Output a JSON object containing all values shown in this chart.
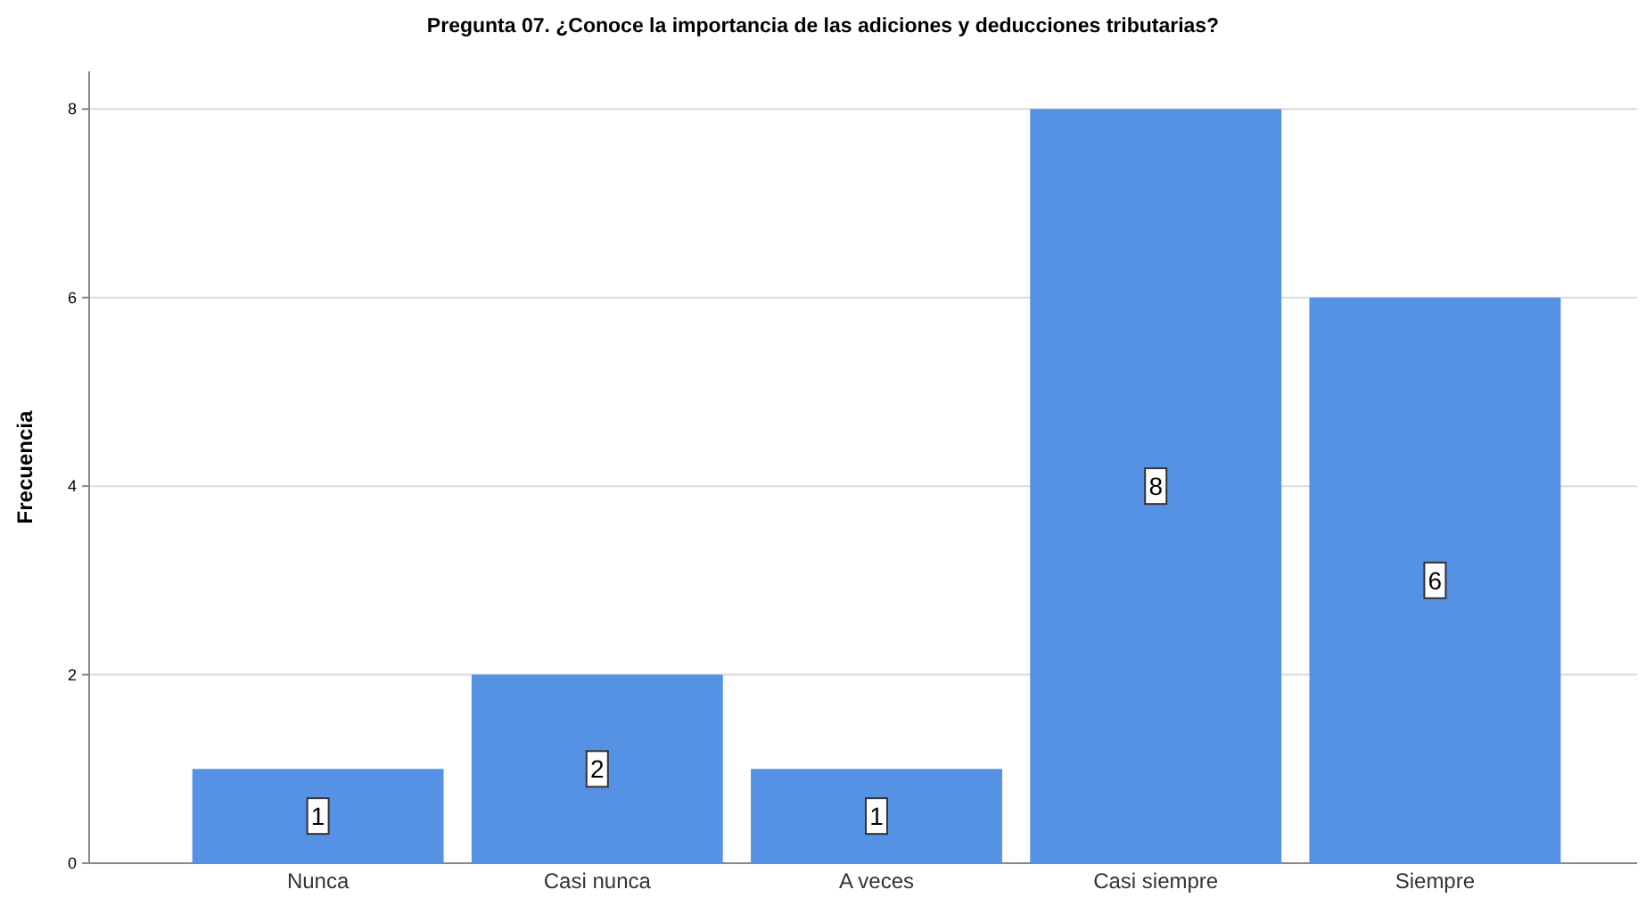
{
  "chart_data": {
    "type": "bar",
    "title": "Pregunta 07. ¿Conoce la importancia de las adiciones y deducciones tributarias?",
    "ylabel": "Frecuencia",
    "categories": [
      "Nunca",
      "Casi nunca",
      "A veces",
      "Casi siempre",
      "Siempre"
    ],
    "values": [
      1,
      2,
      1,
      8,
      6
    ],
    "color": "#5592e3",
    "ylim": [
      0,
      8.4
    ],
    "yticks": [
      0,
      2,
      4,
      6,
      8
    ],
    "grid": "y",
    "data_labels": true
  }
}
